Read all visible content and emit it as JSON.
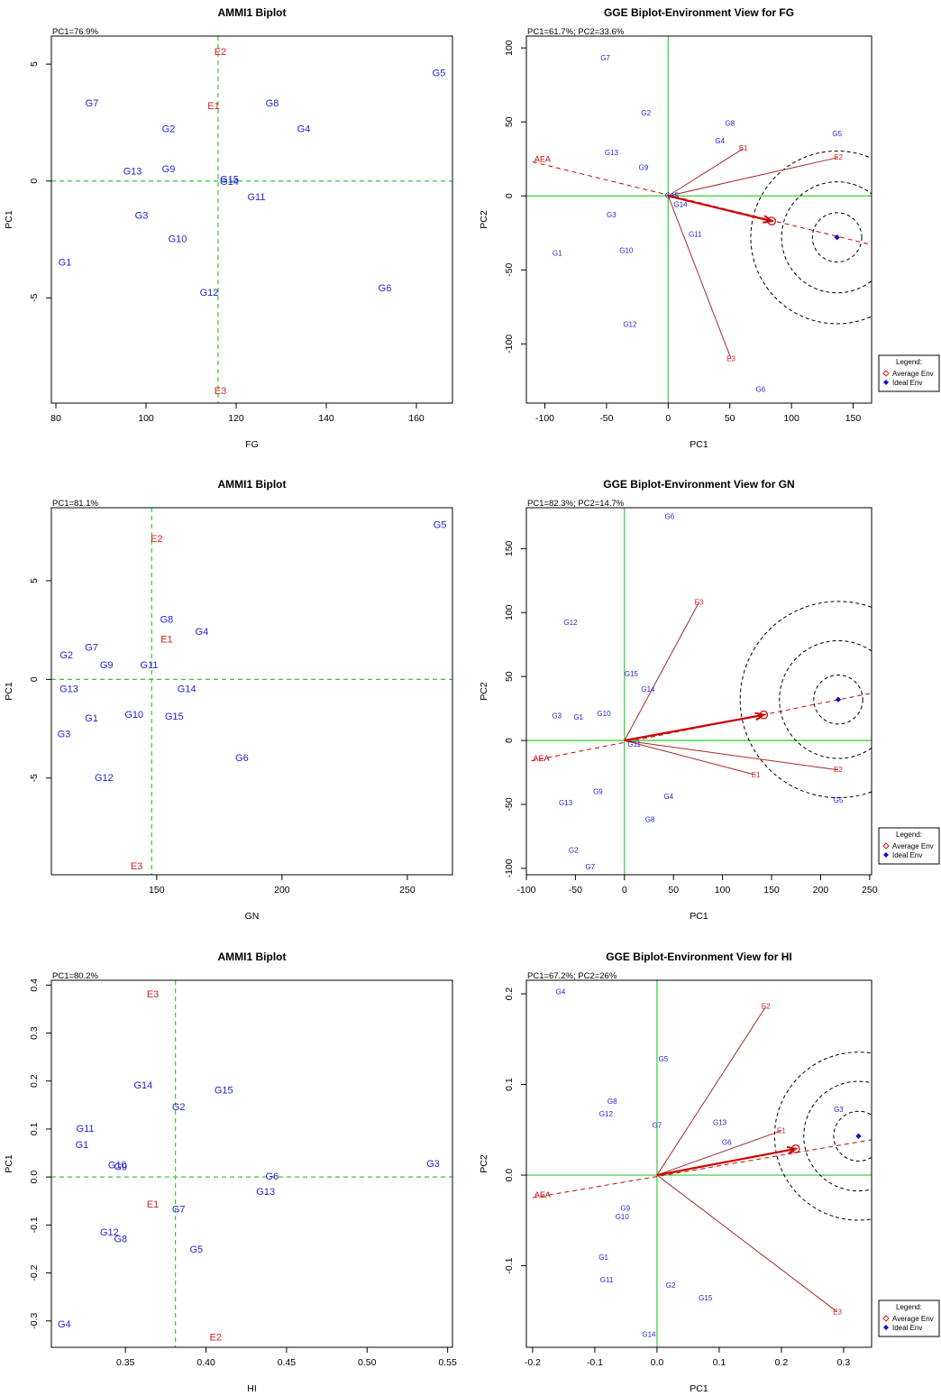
{
  "colors": {
    "genotype": "#1f1fd6",
    "environment": "#d42020",
    "ref_line": "#33cc33",
    "vector": "#a52a2a",
    "aea": "#cc0000",
    "ideal": "#1010cc"
  },
  "chart_data": [
    {
      "type": "scatter",
      "title": "AMMI1 Biplot",
      "xlabel": "FG",
      "ylabel": "PC1",
      "note": "PC1=76.9%",
      "xlim": [
        79,
        168
      ],
      "ylim": [
        -9.5,
        6.2
      ],
      "xticks": [
        80,
        100,
        120,
        140,
        160
      ],
      "yticks": [
        -5,
        0,
        5
      ],
      "ref": {
        "x": 116,
        "y": 0
      },
      "points": [
        {
          "label": "G5",
          "x": 165,
          "y": 4.6,
          "kind": "gen"
        },
        {
          "label": "E2",
          "x": 116.5,
          "y": 5.5,
          "kind": "env"
        },
        {
          "label": "G7",
          "x": 88,
          "y": 3.3,
          "kind": "gen"
        },
        {
          "label": "G8",
          "x": 128,
          "y": 3.3,
          "kind": "gen"
        },
        {
          "label": "E1",
          "x": 115,
          "y": 3.2,
          "kind": "env"
        },
        {
          "label": "G4",
          "x": 135,
          "y": 2.2,
          "kind": "gen"
        },
        {
          "label": "G2",
          "x": 105,
          "y": 2.2,
          "kind": "gen"
        },
        {
          "label": "G13",
          "x": 97,
          "y": 0.4,
          "kind": "gen"
        },
        {
          "label": "G9",
          "x": 105,
          "y": 0.5,
          "kind": "gen"
        },
        {
          "label": "G15",
          "x": 118.5,
          "y": 0.05,
          "kind": "gen"
        },
        {
          "label": "G14",
          "x": 118.5,
          "y": -0.05,
          "kind": "gen"
        },
        {
          "label": "G11",
          "x": 124.5,
          "y": -0.7,
          "kind": "gen"
        },
        {
          "label": "G3",
          "x": 99,
          "y": -1.5,
          "kind": "gen"
        },
        {
          "label": "G10",
          "x": 107,
          "y": -2.5,
          "kind": "gen"
        },
        {
          "label": "G1",
          "x": 82,
          "y": -3.5,
          "kind": "gen"
        },
        {
          "label": "G12",
          "x": 114,
          "y": -4.8,
          "kind": "gen"
        },
        {
          "label": "G6",
          "x": 153,
          "y": -4.6,
          "kind": "gen"
        },
        {
          "label": "E3",
          "x": 116.5,
          "y": -9.0,
          "kind": "env"
        }
      ]
    },
    {
      "type": "scatter",
      "title": "GGE Biplot-Environment View for FG",
      "xlabel": "PC1",
      "ylabel": "PC2",
      "note": "PC1=61.7%; PC2=33.6%",
      "xlim": [
        -115,
        165
      ],
      "ylim": [
        -140,
        108
      ],
      "xticks": [
        -100,
        -50,
        0,
        50,
        100,
        150
      ],
      "yticks": [
        -100,
        -50,
        0,
        50,
        100
      ],
      "ref": {
        "x": 0,
        "y": 0
      },
      "points": [
        {
          "label": "G7",
          "x": -51,
          "y": 93,
          "kind": "gen"
        },
        {
          "label": "G2",
          "x": -18,
          "y": 56,
          "kind": "gen"
        },
        {
          "label": "G8",
          "x": 50,
          "y": 49,
          "kind": "gen"
        },
        {
          "label": "G5",
          "x": 137,
          "y": 42,
          "kind": "gen"
        },
        {
          "label": "G4",
          "x": 42,
          "y": 37,
          "kind": "gen"
        },
        {
          "label": "E1",
          "x": 61,
          "y": 32,
          "kind": "env"
        },
        {
          "label": "G13",
          "x": -46,
          "y": 29,
          "kind": "gen"
        },
        {
          "label": "E2",
          "x": 138,
          "y": 26,
          "kind": "env"
        },
        {
          "label": "G9",
          "x": -20,
          "y": 19,
          "kind": "gen"
        },
        {
          "label": "G15",
          "x": 3,
          "y": 0,
          "kind": "gen"
        },
        {
          "label": "G14",
          "x": 10,
          "y": -6,
          "kind": "gen"
        },
        {
          "label": "G3",
          "x": -46,
          "y": -13,
          "kind": "gen"
        },
        {
          "label": "G11",
          "x": 22,
          "y": -26,
          "kind": "gen"
        },
        {
          "label": "G10",
          "x": -34,
          "y": -37,
          "kind": "gen"
        },
        {
          "label": "G1",
          "x": -90,
          "y": -39,
          "kind": "gen"
        },
        {
          "label": "G12",
          "x": -31,
          "y": -87,
          "kind": "gen"
        },
        {
          "label": "E3",
          "x": 51,
          "y": -110,
          "kind": "env"
        },
        {
          "label": "G6",
          "x": 75,
          "y": -131,
          "kind": "gen"
        }
      ],
      "env_vectors": [
        {
          "x": 61,
          "y": 32
        },
        {
          "x": 138,
          "y": 26
        },
        {
          "x": 51,
          "y": -110
        }
      ],
      "aea": {
        "label": "AEA",
        "start": [
          -110,
          23
        ],
        "end": [
          165,
          -33
        ]
      },
      "average_env": {
        "x": 84,
        "y": -17
      },
      "ideal_env": {
        "x": 137,
        "y": -28
      },
      "circle_radii": [
        20,
        45,
        70
      ],
      "legend": {
        "title": "Legend:",
        "items": [
          "Average Env",
          "Ideal Env"
        ]
      }
    },
    {
      "type": "scatter",
      "title": "AMMI1 Biplot",
      "xlabel": "GN",
      "ylabel": "PC1",
      "note": "PC1=81.1%",
      "xlim": [
        108,
        268
      ],
      "ylim": [
        -9.9,
        8.7
      ],
      "xticks": [
        150,
        200,
        250
      ],
      "yticks": [
        -5,
        0,
        5
      ],
      "ref": {
        "x": 148,
        "y": 0
      },
      "points": [
        {
          "label": "G5",
          "x": 263,
          "y": 7.8,
          "kind": "gen"
        },
        {
          "label": "E2",
          "x": 150,
          "y": 7.1,
          "kind": "env"
        },
        {
          "label": "G8",
          "x": 154,
          "y": 3.0,
          "kind": "gen"
        },
        {
          "label": "G4",
          "x": 168,
          "y": 2.4,
          "kind": "gen"
        },
        {
          "label": "E1",
          "x": 154,
          "y": 2.0,
          "kind": "env"
        },
        {
          "label": "G7",
          "x": 124,
          "y": 1.6,
          "kind": "gen"
        },
        {
          "label": "G2",
          "x": 114,
          "y": 1.2,
          "kind": "gen"
        },
        {
          "label": "G9",
          "x": 130,
          "y": 0.7,
          "kind": "gen"
        },
        {
          "label": "G11",
          "x": 147,
          "y": 0.7,
          "kind": "gen"
        },
        {
          "label": "G13",
          "x": 115,
          "y": -0.5,
          "kind": "gen"
        },
        {
          "label": "G14",
          "x": 162,
          "y": -0.5,
          "kind": "gen"
        },
        {
          "label": "G10",
          "x": 141,
          "y": -1.8,
          "kind": "gen"
        },
        {
          "label": "G1",
          "x": 124,
          "y": -2.0,
          "kind": "gen"
        },
        {
          "label": "G15",
          "x": 157,
          "y": -1.9,
          "kind": "gen"
        },
        {
          "label": "G3",
          "x": 113,
          "y": -2.8,
          "kind": "gen"
        },
        {
          "label": "G6",
          "x": 184,
          "y": -4.0,
          "kind": "gen"
        },
        {
          "label": "G12",
          "x": 129,
          "y": -5.0,
          "kind": "gen"
        },
        {
          "label": "E3",
          "x": 142,
          "y": -9.5,
          "kind": "env"
        }
      ]
    },
    {
      "type": "scatter",
      "title": "GGE Biplot-Environment View for GN",
      "xlabel": "PC1",
      "ylabel": "PC2",
      "note": "PC1=82.3%; PC2=14.7%",
      "xlim": [
        -100,
        252
      ],
      "ylim": [
        -105,
        182
      ],
      "xticks": [
        -100,
        -50,
        0,
        50,
        100,
        150,
        200,
        250
      ],
      "yticks": [
        -100,
        -50,
        0,
        50,
        100,
        150
      ],
      "ref": {
        "x": 0,
        "y": 0
      },
      "points": [
        {
          "label": "G6",
          "x": 46,
          "y": 175,
          "kind": "gen"
        },
        {
          "label": "E3",
          "x": 76,
          "y": 108,
          "kind": "env"
        },
        {
          "label": "G12",
          "x": -55,
          "y": 92,
          "kind": "gen"
        },
        {
          "label": "G15",
          "x": 7,
          "y": 52,
          "kind": "gen"
        },
        {
          "label": "G14",
          "x": 24,
          "y": 40,
          "kind": "gen"
        },
        {
          "label": "G3",
          "x": -69,
          "y": 19,
          "kind": "gen"
        },
        {
          "label": "G1",
          "x": -47,
          "y": 18,
          "kind": "gen"
        },
        {
          "label": "G10",
          "x": -21,
          "y": 21,
          "kind": "gen"
        },
        {
          "label": "G11",
          "x": 10,
          "y": -3,
          "kind": "gen"
        },
        {
          "label": "E1",
          "x": 134,
          "y": -27,
          "kind": "env"
        },
        {
          "label": "E2",
          "x": 218,
          "y": -23,
          "kind": "env"
        },
        {
          "label": "G9",
          "x": -27,
          "y": -40,
          "kind": "gen"
        },
        {
          "label": "G4",
          "x": 45,
          "y": -44,
          "kind": "gen"
        },
        {
          "label": "G5",
          "x": 218,
          "y": -47,
          "kind": "gen"
        },
        {
          "label": "G13",
          "x": -60,
          "y": -49,
          "kind": "gen"
        },
        {
          "label": "G8",
          "x": 26,
          "y": -62,
          "kind": "gen"
        },
        {
          "label": "G2",
          "x": -52,
          "y": -86,
          "kind": "gen"
        },
        {
          "label": "G7",
          "x": -35,
          "y": -99,
          "kind": "gen"
        }
      ],
      "env_vectors": [
        {
          "x": 76,
          "y": 108
        },
        {
          "x": 134,
          "y": -27
        },
        {
          "x": 218,
          "y": -23
        }
      ],
      "aea": {
        "label": "AEA",
        "start": [
          -95,
          -16
        ],
        "end": [
          252,
          37
        ]
      },
      "average_env": {
        "x": 142,
        "y": 20
      },
      "ideal_env": {
        "x": 218,
        "y": 32
      },
      "circle_radii": [
        25,
        60,
        100
      ],
      "legend": {
        "title": "Legend:",
        "items": [
          "Average Env",
          "Ideal Env"
        ]
      }
    },
    {
      "type": "scatter",
      "title": "AMMI1 Biplot",
      "xlabel": "HI",
      "ylabel": "PC1",
      "note": "PC1=80.2%",
      "xlim": [
        0.304,
        0.553
      ],
      "ylim": [
        -0.355,
        0.41
      ],
      "xticks": [
        0.35,
        0.4,
        0.45,
        0.5,
        0.55
      ],
      "yticks": [
        -0.3,
        -0.2,
        -0.1,
        0.0,
        0.1,
        0.2,
        0.3,
        0.4
      ],
      "ref": {
        "x": 0.381,
        "y": 0
      },
      "points": [
        {
          "label": "E3",
          "x": 0.367,
          "y": 0.38,
          "kind": "env"
        },
        {
          "label": "G14",
          "x": 0.361,
          "y": 0.19,
          "kind": "gen"
        },
        {
          "label": "G15",
          "x": 0.411,
          "y": 0.18,
          "kind": "gen"
        },
        {
          "label": "G2",
          "x": 0.383,
          "y": 0.145,
          "kind": "gen"
        },
        {
          "label": "G11",
          "x": 0.325,
          "y": 0.1,
          "kind": "gen"
        },
        {
          "label": "G1",
          "x": 0.323,
          "y": 0.066,
          "kind": "gen"
        },
        {
          "label": "G10",
          "x": 0.345,
          "y": 0.024,
          "kind": "gen"
        },
        {
          "label": "G9",
          "x": 0.347,
          "y": 0.02,
          "kind": "gen"
        },
        {
          "label": "G3",
          "x": 0.541,
          "y": 0.027,
          "kind": "gen"
        },
        {
          "label": "G6",
          "x": 0.441,
          "y": 0.0,
          "kind": "gen"
        },
        {
          "label": "G13",
          "x": 0.437,
          "y": -0.032,
          "kind": "gen"
        },
        {
          "label": "E1",
          "x": 0.367,
          "y": -0.058,
          "kind": "env"
        },
        {
          "label": "G7",
          "x": 0.383,
          "y": -0.068,
          "kind": "gen"
        },
        {
          "label": "G12",
          "x": 0.34,
          "y": -0.116,
          "kind": "gen"
        },
        {
          "label": "G8",
          "x": 0.347,
          "y": -0.13,
          "kind": "gen"
        },
        {
          "label": "G5",
          "x": 0.394,
          "y": -0.152,
          "kind": "gen"
        },
        {
          "label": "G4",
          "x": 0.312,
          "y": -0.308,
          "kind": "gen"
        },
        {
          "label": "E2",
          "x": 0.406,
          "y": -0.335,
          "kind": "env"
        }
      ]
    },
    {
      "type": "scatter",
      "title": "GGE Biplot-Environment View for HI",
      "xlabel": "PC1",
      "ylabel": "PC2",
      "note": "PC1=67.2%; PC2=26%",
      "xlim": [
        -0.21,
        0.345
      ],
      "ylim": [
        -0.19,
        0.215
      ],
      "xticks": [
        -0.2,
        -0.1,
        0.0,
        0.1,
        0.2,
        0.3
      ],
      "yticks": [
        -0.1,
        0.0,
        0.1,
        0.2
      ],
      "ref": {
        "x": 0,
        "y": 0
      },
      "points": [
        {
          "label": "G4",
          "x": -0.155,
          "y": 0.202,
          "kind": "gen"
        },
        {
          "label": "E2",
          "x": 0.175,
          "y": 0.186,
          "kind": "env"
        },
        {
          "label": "G5",
          "x": 0.01,
          "y": 0.128,
          "kind": "gen"
        },
        {
          "label": "G8",
          "x": -0.072,
          "y": 0.081,
          "kind": "gen"
        },
        {
          "label": "G12",
          "x": -0.082,
          "y": 0.067,
          "kind": "gen"
        },
        {
          "label": "G7",
          "x": 0.0,
          "y": 0.055,
          "kind": "gen"
        },
        {
          "label": "G13",
          "x": 0.101,
          "y": 0.058,
          "kind": "gen"
        },
        {
          "label": "E1",
          "x": 0.2,
          "y": 0.049,
          "kind": "env"
        },
        {
          "label": "G3",
          "x": 0.292,
          "y": 0.072,
          "kind": "gen"
        },
        {
          "label": "G6",
          "x": 0.112,
          "y": 0.036,
          "kind": "gen"
        },
        {
          "label": "G9",
          "x": -0.051,
          "y": -0.037,
          "kind": "gen"
        },
        {
          "label": "G10",
          "x": -0.056,
          "y": -0.046,
          "kind": "gen"
        },
        {
          "label": "G1",
          "x": -0.086,
          "y": -0.091,
          "kind": "gen"
        },
        {
          "label": "G11",
          "x": -0.081,
          "y": -0.116,
          "kind": "gen"
        },
        {
          "label": "G2",
          "x": 0.022,
          "y": -0.122,
          "kind": "gen"
        },
        {
          "label": "G15",
          "x": 0.078,
          "y": -0.136,
          "kind": "gen"
        },
        {
          "label": "E3",
          "x": 0.29,
          "y": -0.151,
          "kind": "env"
        },
        {
          "label": "G14",
          "x": -0.013,
          "y": -0.176,
          "kind": "gen"
        }
      ],
      "env_vectors": [
        {
          "x": 0.175,
          "y": 0.186
        },
        {
          "x": 0.2,
          "y": 0.049
        },
        {
          "x": 0.29,
          "y": -0.151
        }
      ],
      "aea": {
        "label": "AEA",
        "start": [
          -0.2,
          -0.025
        ],
        "end": [
          0.345,
          0.039
        ]
      },
      "average_env": {
        "x": 0.223,
        "y": 0.029
      },
      "ideal_env": {
        "x": 0.324,
        "y": 0.043
      },
      "circle_radii": [
        0.04,
        0.088,
        0.135
      ],
      "legend": {
        "title": "Legend:",
        "items": [
          "Average Env",
          "Ideal Env"
        ]
      }
    }
  ]
}
